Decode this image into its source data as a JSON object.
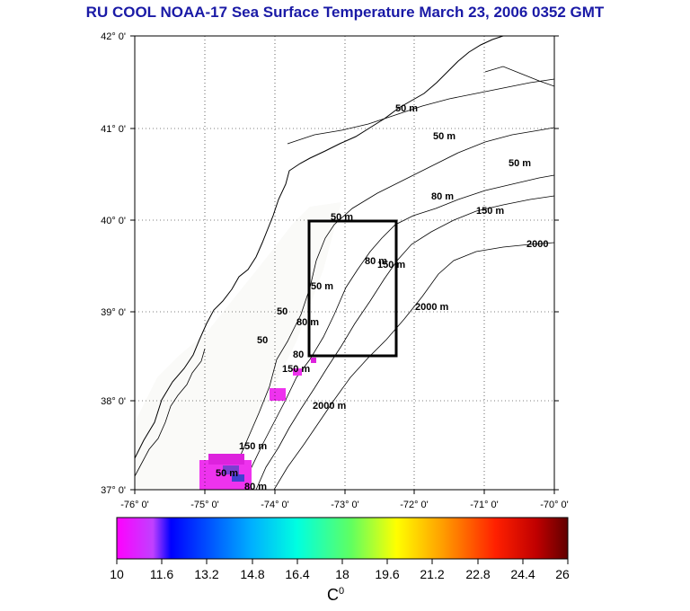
{
  "title": "RU COOL  NOAA-17 Sea Surface Temperature March 23, 2006 0352 GMT",
  "lat_labels": [
    "42° 0'",
    "41° 0'",
    "40° 0'",
    "39° 0'",
    "38° 0'",
    "37° 0'"
  ],
  "lon_labels": [
    "-76° 0'",
    "-75° 0'",
    "-74° 0'",
    "-73° 0'",
    "-72° 0'",
    "-71° 0'",
    "-70° 0'"
  ],
  "contours": {
    "c1": "50 m",
    "c2": "50 m",
    "c3": "50 m",
    "c4": "80 m",
    "c5": "150 m",
    "c6": "2000",
    "c7": "50 m",
    "c8": "50 m",
    "c9": "80 m",
    "c10": "150 m",
    "c11": "2000 m",
    "c12": "50",
    "c13": "80 m",
    "c14": "150 m",
    "c15": "2000 m",
    "c16": "150 m",
    "c17": "50",
    "c18": "80",
    "c19": "50 m",
    "c20": "80 m"
  },
  "colorbar": {
    "labels": [
      "10",
      "11.6",
      "13.2",
      "14.8",
      "16.4",
      "18",
      "19.6",
      "21.2",
      "22.8",
      "24.4",
      "26"
    ],
    "units": "C",
    "units_sup": "0",
    "colors": [
      "#ff00ff",
      "#0000ff",
      "#00ffff",
      "#00ff00",
      "#ffff00",
      "#ff8000",
      "#ff0000",
      "#800000"
    ]
  }
}
